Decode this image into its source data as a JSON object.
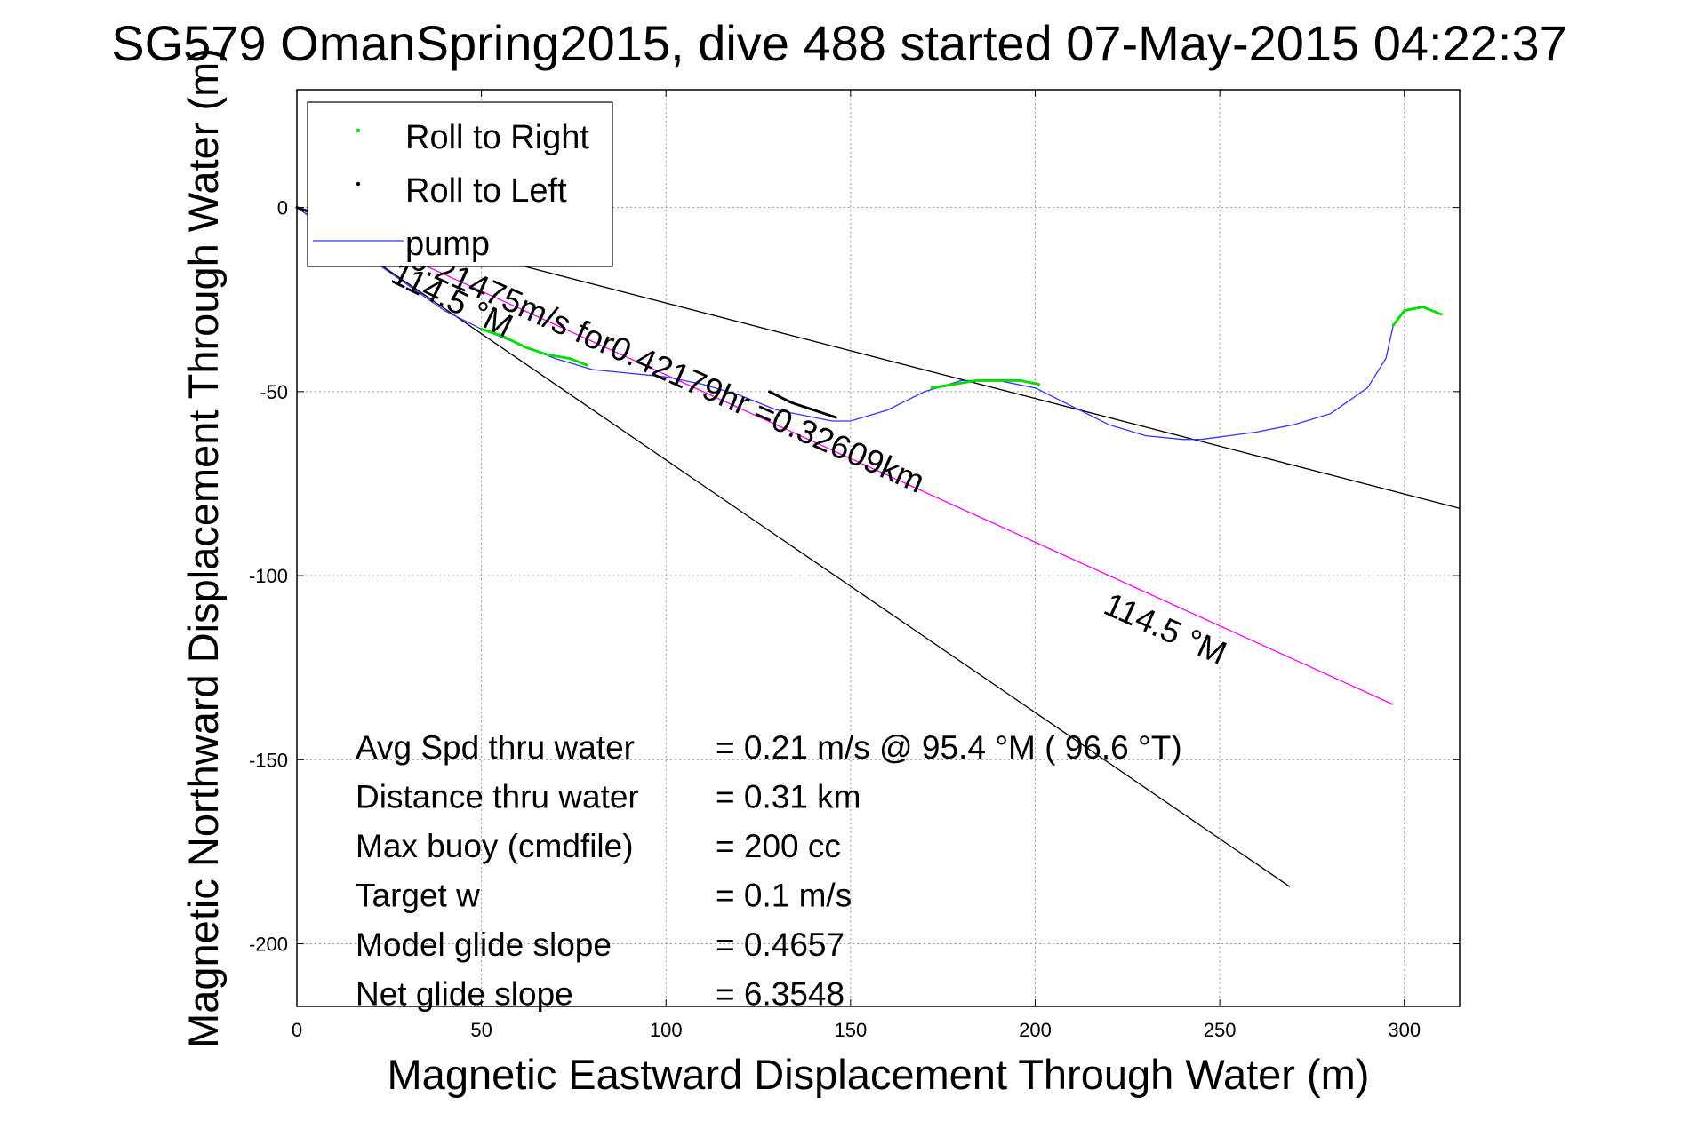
{
  "chart_data": {
    "type": "line",
    "title": "SG579 OmanSpring2015, dive 488 started 07-May-2015 04:22:37",
    "xlabel": "Magnetic Eastward Displacement Through Water (m)",
    "ylabel": "Magnetic Northward Displacement Through Water (m)",
    "xlim": [
      0,
      315
    ],
    "ylim": [
      -217,
      32
    ],
    "xticks": [
      0,
      50,
      100,
      150,
      200,
      250,
      300
    ],
    "yticks": [
      -200,
      -150,
      -100,
      -50,
      0
    ],
    "grid": true,
    "legend_position": "top-left",
    "legend": [
      {
        "label": "Roll to Right",
        "color": "#00dd00",
        "marker": "dot"
      },
      {
        "label": "Roll to Left",
        "color": "#000000",
        "marker": "dot"
      },
      {
        "label": "pump",
        "color": "#3333ff",
        "marker": "line"
      }
    ],
    "series": [
      {
        "name": "pump",
        "color": "#3333ff",
        "x": [
          0,
          10,
          20,
          30,
          40,
          50,
          60,
          70,
          80,
          90,
          100,
          110,
          120,
          130,
          140,
          145,
          150,
          160,
          170,
          180,
          190,
          200,
          210,
          220,
          230,
          240,
          245,
          260,
          270,
          280,
          290,
          295,
          297,
          300,
          305,
          310
        ],
        "y": [
          0,
          -7,
          -14,
          -21,
          -28,
          -33,
          -37,
          -41,
          -44,
          -45,
          -46,
          -48,
          -51,
          -55,
          -57,
          -58,
          -58,
          -55,
          -50,
          -47,
          -47,
          -49,
          -54,
          -59,
          -62,
          -63,
          -63,
          -61,
          -59,
          -56,
          -49,
          -41,
          -32,
          -28,
          -27,
          -29
        ]
      },
      {
        "name": "Roll to Right",
        "color": "#00dd00",
        "segments": [
          {
            "x": [
              50,
              56,
              62,
              68,
              74,
              79
            ],
            "y": [
              -33,
              -35,
              -38,
              -40,
              -41,
              -43
            ]
          },
          {
            "x": [
              172,
              178,
              184,
              190,
              196,
              201
            ],
            "y": [
              -49,
              -48,
              -47,
              -47,
              -47,
              -48
            ]
          },
          {
            "x": [
              297,
              300,
              305,
              310
            ],
            "y": [
              -32,
              -28,
              -27,
              -29
            ]
          }
        ]
      },
      {
        "name": "Roll to Left",
        "color": "#000000",
        "segments": [
          {
            "x": [
              0,
              3,
              6
            ],
            "y": [
              0,
              -1,
              -2
            ]
          },
          {
            "x": [
              128,
              134,
              140,
              146
            ],
            "y": [
              -50,
              -53,
              -55,
              -57
            ]
          }
        ]
      },
      {
        "color": "#ff00ff",
        "x": [
          0,
          297
        ],
        "y": [
          0,
          -135
        ]
      },
      {
        "color": "#000000",
        "x": [
          0,
          315
        ],
        "y": [
          0,
          -81.7
        ]
      },
      {
        "color": "#000000",
        "x": [
          0,
          269
        ],
        "y": [
          0,
          -184.5
        ]
      }
    ],
    "annotations": [
      {
        "text": "114.5 °M",
        "x": 25,
        "y": -20,
        "rotation": 26
      },
      {
        "text": "0.21475m/s for0.42179hr =0.32609km",
        "x": 30,
        "y": -16,
        "rotation": 24
      },
      {
        "text": "114.5 °M",
        "x": 218,
        "y": -110,
        "rotation": 24
      }
    ],
    "stats": [
      {
        "label": "Avg Spd thru water",
        "value": "=  0.21 m/s @  95.4 °M ( 96.6 °T)"
      },
      {
        "label": "Distance thru water",
        "value": "=  0.31 km"
      },
      {
        "label": "Max buoy (cmdfile)",
        "value": "= 200 cc"
      },
      {
        "label": "Target w",
        "value": "= 0.1 m/s"
      },
      {
        "label": "Model glide slope",
        "value": "= 0.4657"
      },
      {
        "label": "Net glide slope",
        "value": "= 6.3548"
      }
    ]
  }
}
